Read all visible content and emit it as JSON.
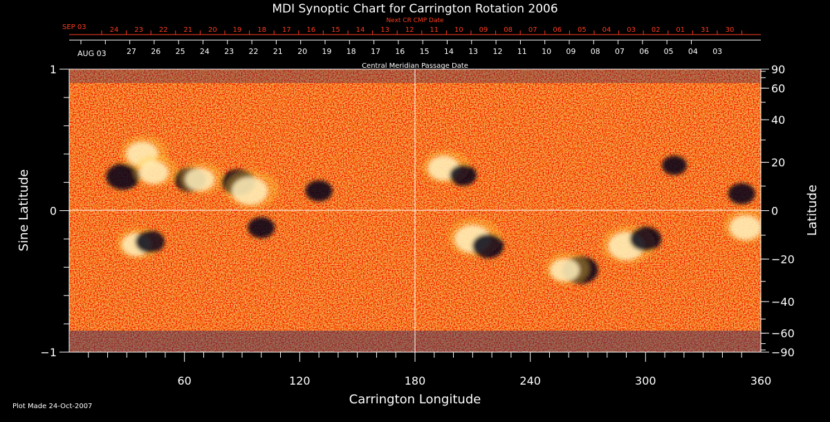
{
  "title": "MDI Synoptic Chart for Carrington Rotation 2006",
  "footer": "Plot Made 24-Oct-2007",
  "colors": {
    "background": "#000000",
    "top_scale": "#ff3b1f",
    "text": "#ffffff",
    "map_base": "#e8561a",
    "map_dark_red": "#8a1a10",
    "map_bright": "#ffd040",
    "map_positive": "#ffffff",
    "map_negative": "#050510",
    "map_noise_blue": "#2a2a6a"
  },
  "chart_data": {
    "type": "heatmap",
    "title": "MDI Synoptic Chart for Carrington Rotation 2006",
    "xlabel": "Carrington Longitude",
    "ylabel": "Sine Latitude",
    "y2label": "Latitude",
    "top_label": "Central Meridian Passage Date",
    "top2_label": "Next CR CMP Date",
    "xlim": [
      0,
      360
    ],
    "ylim": [
      -1,
      1
    ],
    "x_ticks": [
      60,
      120,
      180,
      240,
      300,
      360
    ],
    "y_ticks": [
      {
        "value": -1,
        "label": "−1"
      },
      {
        "value": 0,
        "label": "0"
      },
      {
        "value": 1,
        "label": "1"
      }
    ],
    "latitude_ticks": [
      {
        "deg": 90,
        "label": "90"
      },
      {
        "deg": 60,
        "label": "60"
      },
      {
        "deg": 40,
        "label": "40"
      },
      {
        "deg": 20,
        "label": "20"
      },
      {
        "deg": 0,
        "label": "0"
      },
      {
        "deg": -20,
        "label": "−20"
      },
      {
        "deg": -40,
        "label": "−40"
      },
      {
        "deg": -60,
        "label": "−60"
      },
      {
        "deg": -90,
        "label": "−90"
      }
    ],
    "cmp_dates": {
      "first_label": "AUG 03",
      "first_longitude": 360,
      "labels": [
        "27",
        "26",
        "25",
        "24",
        "23",
        "22",
        "21",
        "20",
        "19",
        "18",
        "17",
        "16",
        "15",
        "14",
        "13",
        "12",
        "11",
        "10",
        "09",
        "08",
        "07",
        "06",
        "05",
        "04",
        "03"
      ]
    },
    "next_cr_dates": {
      "first_label": "SEP 03",
      "labels": [
        "24",
        "23",
        "22",
        "21",
        "20",
        "19",
        "18",
        "17",
        "16",
        "15",
        "14",
        "13",
        "12",
        "11",
        "10",
        "09",
        "08",
        "07",
        "06",
        "05",
        "04",
        "03",
        "02",
        "01",
        "31",
        "30"
      ]
    },
    "grid": "lines at longitude 180 and sine latitude 0",
    "active_regions": [
      {
        "lon": 28,
        "sinlat": 0.24,
        "polarity": "negative",
        "strength": 0.9
      },
      {
        "lon": 38,
        "sinlat": 0.4,
        "polarity": "positive",
        "strength": 0.8
      },
      {
        "lon": 44,
        "sinlat": 0.27,
        "polarity": "positive",
        "strength": 0.7
      },
      {
        "lon": 63,
        "sinlat": 0.22,
        "polarity": "negative",
        "strength": 0.8
      },
      {
        "lon": 68,
        "sinlat": 0.22,
        "polarity": "positive",
        "strength": 0.7
      },
      {
        "lon": 88,
        "sinlat": 0.2,
        "polarity": "negative",
        "strength": 0.9
      },
      {
        "lon": 94,
        "sinlat": 0.14,
        "polarity": "positive",
        "strength": 1.0
      },
      {
        "lon": 130,
        "sinlat": 0.14,
        "polarity": "negative",
        "strength": 0.6
      },
      {
        "lon": 100,
        "sinlat": -0.12,
        "polarity": "negative",
        "strength": 0.6
      },
      {
        "lon": 35,
        "sinlat": -0.24,
        "polarity": "positive",
        "strength": 0.7
      },
      {
        "lon": 42,
        "sinlat": -0.22,
        "polarity": "negative",
        "strength": 0.7
      },
      {
        "lon": 195,
        "sinlat": 0.3,
        "polarity": "positive",
        "strength": 0.8
      },
      {
        "lon": 205,
        "sinlat": 0.25,
        "polarity": "negative",
        "strength": 0.6
      },
      {
        "lon": 210,
        "sinlat": -0.2,
        "polarity": "positive",
        "strength": 1.0
      },
      {
        "lon": 218,
        "sinlat": -0.25,
        "polarity": "negative",
        "strength": 0.8
      },
      {
        "lon": 266,
        "sinlat": -0.42,
        "polarity": "negative",
        "strength": 1.0
      },
      {
        "lon": 258,
        "sinlat": -0.42,
        "polarity": "positive",
        "strength": 0.7
      },
      {
        "lon": 290,
        "sinlat": -0.25,
        "polarity": "positive",
        "strength": 1.0
      },
      {
        "lon": 300,
        "sinlat": -0.2,
        "polarity": "negative",
        "strength": 0.8
      },
      {
        "lon": 352,
        "sinlat": -0.12,
        "polarity": "positive",
        "strength": 0.8
      },
      {
        "lon": 350,
        "sinlat": 0.12,
        "polarity": "negative",
        "strength": 0.6
      },
      {
        "lon": 315,
        "sinlat": 0.32,
        "polarity": "negative",
        "strength": 0.5
      }
    ]
  }
}
